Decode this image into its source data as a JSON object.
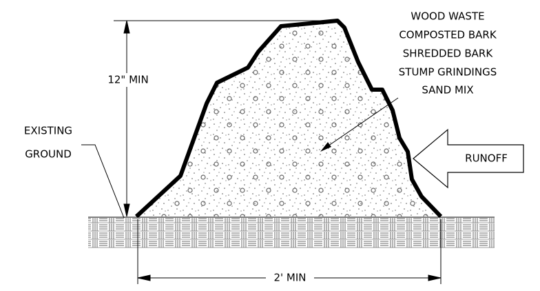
{
  "material": {
    "lines": [
      "WOOD WASTE",
      "COMPOSTED BARK",
      "SHREDDED BARK",
      "STUMP GRINDINGS",
      "SAND MIX"
    ]
  },
  "ground_label": {
    "lines": [
      "EXISTING",
      "GROUND"
    ]
  },
  "runoff_label": "RUNOFF",
  "dimensions": {
    "height": "12\" MIN",
    "width": "2' MIN"
  }
}
